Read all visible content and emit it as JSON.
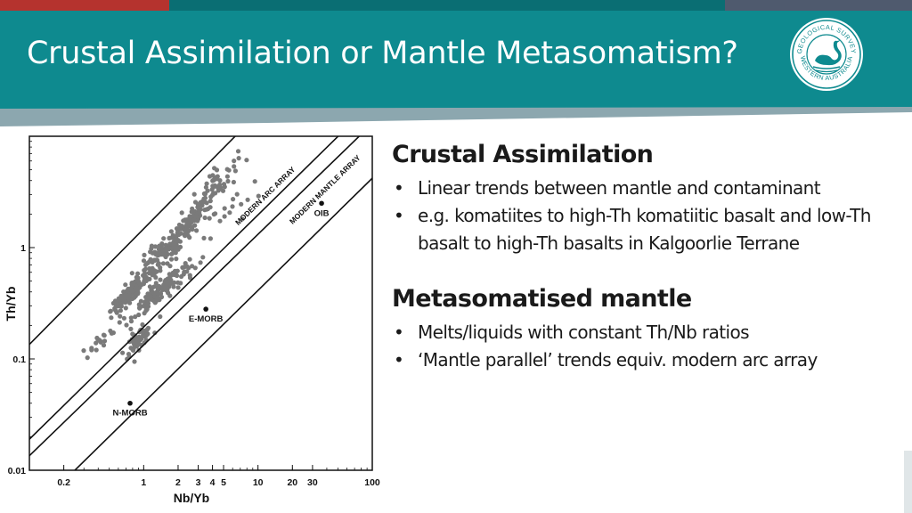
{
  "slide": {
    "title": "Crustal Assimilation or Mantle Metasomatism?"
  },
  "logo": {
    "icon": "black-swan-seal-icon",
    "text_top": "GEOLOGICAL SURVEY",
    "text_bottom": "WESTERN AUSTRALIA"
  },
  "colors": {
    "header": "#0e8a8f",
    "topbar_red": "#b5332e",
    "topbar_teal": "#0a6e73",
    "topbar_slate": "#4f5a6e",
    "points": "#7a7a7a"
  },
  "sections": [
    {
      "heading": "Crustal Assimilation",
      "bullets": [
        "Linear trends between mantle and contaminant",
        "e.g. komatiites to high-Th komatiitic basalt and low-Th basalt to high-Th basalts in Kalgoorlie Terrane"
      ]
    },
    {
      "heading": "Metasomatised mantle",
      "bullets": [
        "Melts/liquids with constant Th/Nb ratios",
        "‘Mantle parallel’ trends equiv. modern arc array"
      ]
    }
  ],
  "chart_data": {
    "type": "scatter",
    "title": "",
    "xlabel": "Nb/Yb",
    "ylabel": "Th/Yb",
    "xscale": "log",
    "yscale": "log",
    "xlim": [
      0.1,
      100
    ],
    "ylim": [
      0.01,
      10
    ],
    "xticks": [
      {
        "value": 0.2,
        "label": "0.2"
      },
      {
        "value": 1,
        "label": "1"
      },
      {
        "value": 2,
        "label": "2"
      },
      {
        "value": 3,
        "label": "3"
      },
      {
        "value": 4,
        "label": "4"
      },
      {
        "value": 5,
        "label": "5"
      },
      {
        "value": 10,
        "label": "10"
      },
      {
        "value": 20,
        "label": "20"
      },
      {
        "value": 30,
        "label": "30"
      },
      {
        "value": 100,
        "label": "100"
      }
    ],
    "yticks": [
      {
        "value": 0.01,
        "label": "0.01"
      },
      {
        "value": 0.1,
        "label": "0.1"
      },
      {
        "value": 1,
        "label": "1"
      }
    ],
    "reference_points": [
      {
        "label": "N-MORB",
        "x": 0.76,
        "y": 0.04
      },
      {
        "label": "E-MORB",
        "x": 3.5,
        "y": 0.28
      },
      {
        "label": "OIB",
        "x": 36,
        "y": 2.5
      }
    ],
    "array_labels": [
      {
        "label": "MODERN ARC ARRAY",
        "x": 12,
        "y": 2.8
      },
      {
        "label": "MODERN MANTLE ARRAY",
        "x": 40,
        "y": 3.2
      }
    ],
    "array_lines": [
      {
        "name": "arc-upper",
        "points": [
          [
            0.1,
            0.135
          ],
          [
            24,
            40
          ]
        ]
      },
      {
        "name": "arc-lower",
        "points": [
          [
            0.1,
            0.019
          ],
          [
            100,
            20
          ]
        ]
      },
      {
        "name": "mantle-upper",
        "points": [
          [
            0.1,
            0.0135
          ],
          [
            100,
            13
          ]
        ]
      },
      {
        "name": "mantle-lower",
        "points": [
          [
            0.25,
            0.01
          ],
          [
            100,
            4.2
          ]
        ]
      }
    ],
    "clusters": [
      {
        "cx": 1.4,
        "cy": 0.8,
        "sx": 0.12,
        "sy": 0.12,
        "n": 110
      },
      {
        "cx": 2.4,
        "cy": 1.6,
        "sx": 0.09,
        "sy": 0.1,
        "n": 90
      },
      {
        "cx": 4.2,
        "cy": 3.6,
        "sx": 0.1,
        "sy": 0.12,
        "n": 60
      },
      {
        "cx": 0.75,
        "cy": 0.38,
        "sx": 0.08,
        "sy": 0.06,
        "n": 120
      },
      {
        "cx": 1.3,
        "cy": 0.38,
        "sx": 0.1,
        "sy": 0.07,
        "n": 110
      },
      {
        "cx": 0.9,
        "cy": 0.15,
        "sx": 0.06,
        "sy": 0.07,
        "n": 60
      },
      {
        "cx": 0.4,
        "cy": 0.14,
        "sx": 0.08,
        "sy": 0.05,
        "n": 20
      },
      {
        "cx": 2.2,
        "cy": 0.55,
        "sx": 0.12,
        "sy": 0.1,
        "n": 25
      },
      {
        "cx": 6.0,
        "cy": 2.2,
        "sx": 0.12,
        "sy": 0.15,
        "n": 15
      }
    ]
  }
}
